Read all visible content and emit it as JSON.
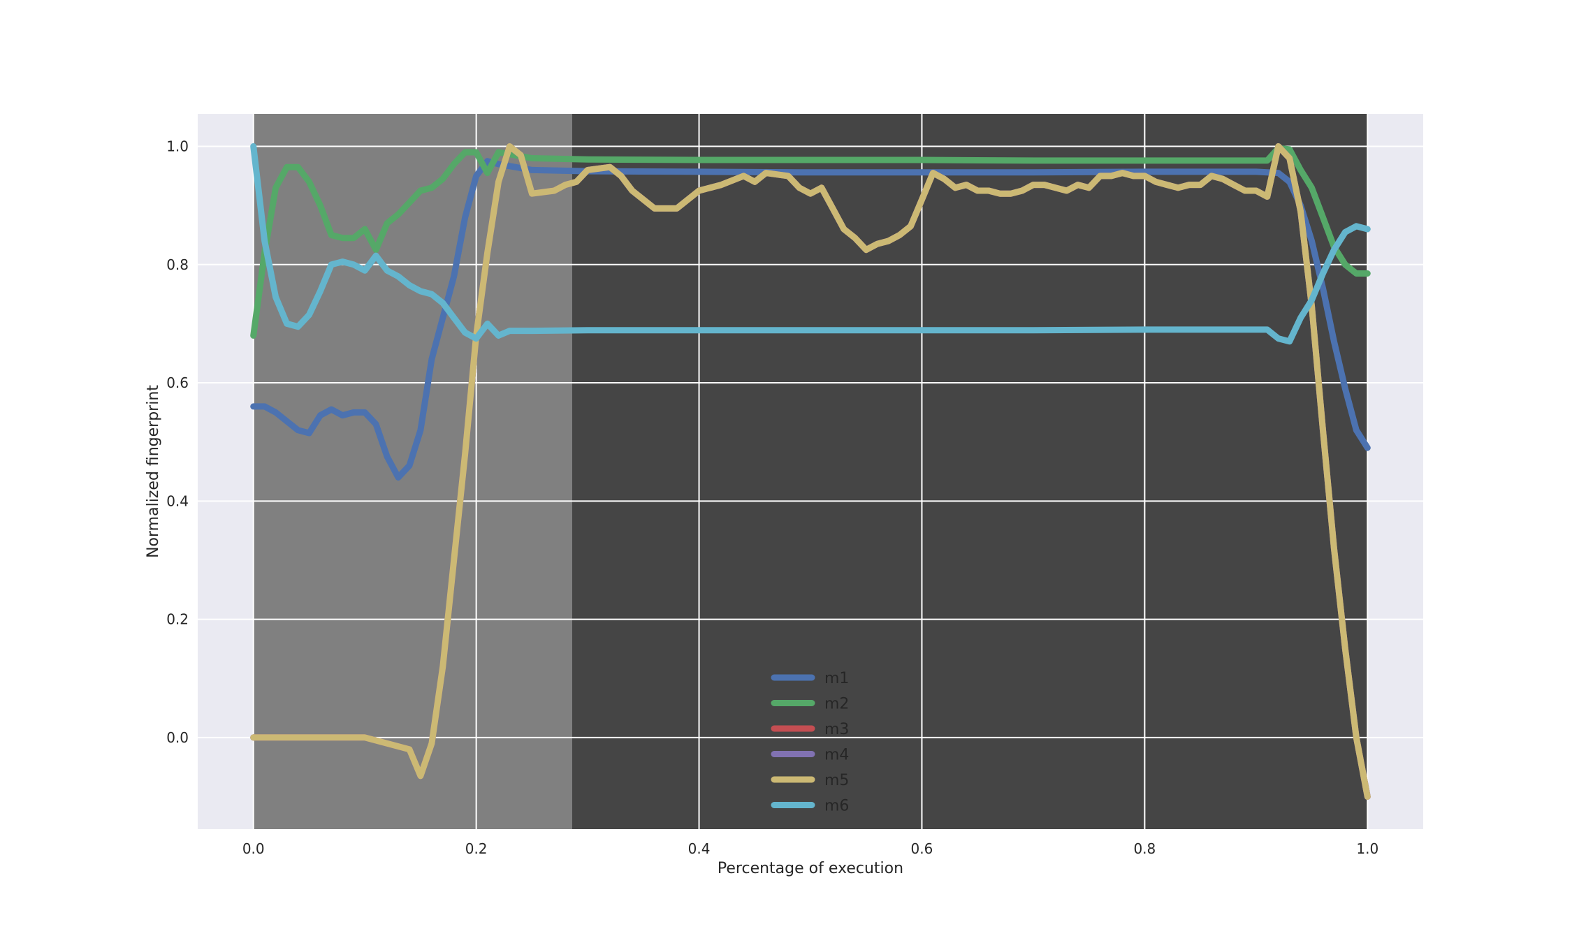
{
  "chart_data": {
    "type": "line",
    "title": "",
    "xlabel": "Percentage of execution",
    "ylabel": "Normalized fingerprint",
    "xlim": [
      -0.05,
      1.05
    ],
    "ylim": [
      -0.155,
      1.055
    ],
    "x_ticks": [
      0.0,
      0.2,
      0.4,
      0.6,
      0.8,
      1.0
    ],
    "x_tick_labels": [
      "0.0",
      "0.2",
      "0.4",
      "0.6",
      "0.8",
      "1.0"
    ],
    "y_ticks": [
      0.0,
      0.2,
      0.4,
      0.6,
      0.8,
      1.0
    ],
    "y_tick_labels": [
      "0.0",
      "0.2",
      "0.4",
      "0.6",
      "0.8",
      "1.0"
    ],
    "grid": true,
    "legend_position": "bottom-center",
    "background_color": "#EAEAF2",
    "shaded_regions": [
      {
        "x": [
          0.0,
          0.286
        ],
        "color": "#808080"
      },
      {
        "x": [
          0.286,
          1.0
        ],
        "color": "#454545"
      }
    ],
    "series": [
      {
        "name": "m1",
        "color": "#4C72B0",
        "x": [
          0,
          0.01,
          0.02,
          0.03,
          0.04,
          0.05,
          0.06,
          0.07,
          0.08,
          0.09,
          0.1,
          0.11,
          0.12,
          0.13,
          0.14,
          0.15,
          0.16,
          0.17,
          0.18,
          0.19,
          0.2,
          0.21,
          0.22,
          0.25,
          0.3,
          0.4,
          0.5,
          0.6,
          0.7,
          0.8,
          0.9,
          0.92,
          0.93,
          0.94,
          0.95,
          0.96,
          0.97,
          0.98,
          0.99,
          1.0
        ],
        "y": [
          0.56,
          0.56,
          0.55,
          0.535,
          0.52,
          0.515,
          0.545,
          0.555,
          0.545,
          0.55,
          0.55,
          0.53,
          0.475,
          0.44,
          0.46,
          0.52,
          0.64,
          0.71,
          0.78,
          0.88,
          0.95,
          0.975,
          0.97,
          0.96,
          0.958,
          0.957,
          0.956,
          0.956,
          0.956,
          0.957,
          0.957,
          0.955,
          0.94,
          0.9,
          0.84,
          0.76,
          0.67,
          0.59,
          0.52,
          0.49
        ]
      },
      {
        "name": "m2",
        "color": "#55A868",
        "x": [
          0,
          0.01,
          0.02,
          0.03,
          0.04,
          0.05,
          0.06,
          0.07,
          0.08,
          0.09,
          0.1,
          0.11,
          0.12,
          0.13,
          0.14,
          0.15,
          0.16,
          0.17,
          0.18,
          0.19,
          0.2,
          0.21,
          0.22,
          0.25,
          0.3,
          0.4,
          0.5,
          0.6,
          0.7,
          0.8,
          0.9,
          0.91,
          0.92,
          0.93,
          0.94,
          0.95,
          0.96,
          0.97,
          0.98,
          0.99,
          1.0
        ],
        "y": [
          0.68,
          0.82,
          0.93,
          0.965,
          0.965,
          0.94,
          0.9,
          0.85,
          0.845,
          0.845,
          0.86,
          0.825,
          0.87,
          0.885,
          0.905,
          0.925,
          0.93,
          0.945,
          0.97,
          0.99,
          0.99,
          0.955,
          0.99,
          0.98,
          0.978,
          0.977,
          0.977,
          0.977,
          0.976,
          0.976,
          0.976,
          0.976,
          0.997,
          0.995,
          0.96,
          0.93,
          0.88,
          0.83,
          0.8,
          0.785,
          0.785
        ]
      },
      {
        "name": "m3",
        "color": "#C44E52",
        "x": [
          0,
          0.1,
          0.14,
          0.15,
          0.16,
          0.17,
          0.18,
          0.19,
          0.2,
          0.21,
          0.22,
          0.23,
          0.24,
          0.25,
          0.27,
          0.28,
          0.29,
          0.3,
          0.32,
          0.33,
          0.34,
          0.36,
          0.38,
          0.4,
          0.42,
          0.44,
          0.45,
          0.46,
          0.48,
          0.49,
          0.5,
          0.51,
          0.52,
          0.53,
          0.54,
          0.55,
          0.56,
          0.57,
          0.58,
          0.59,
          0.6,
          0.61,
          0.62,
          0.63,
          0.64,
          0.65,
          0.66,
          0.67,
          0.68,
          0.69,
          0.7,
          0.71,
          0.72,
          0.73,
          0.74,
          0.75,
          0.76,
          0.77,
          0.78,
          0.79,
          0.8,
          0.81,
          0.82,
          0.83,
          0.84,
          0.85,
          0.86,
          0.87,
          0.88,
          0.89,
          0.9,
          0.91,
          0.92,
          0.93,
          0.94,
          0.95,
          0.96,
          0.97,
          0.98,
          0.99,
          1.0
        ],
        "y": [
          0.0,
          0.0,
          -0.02,
          -0.065,
          -0.01,
          0.12,
          0.3,
          0.48,
          0.68,
          0.82,
          0.94,
          1.0,
          0.985,
          0.92,
          0.925,
          0.935,
          0.94,
          0.96,
          0.965,
          0.95,
          0.925,
          0.895,
          0.895,
          0.925,
          0.935,
          0.95,
          0.94,
          0.955,
          0.95,
          0.93,
          0.92,
          0.93,
          0.895,
          0.86,
          0.845,
          0.825,
          0.835,
          0.84,
          0.85,
          0.865,
          0.91,
          0.955,
          0.945,
          0.93,
          0.935,
          0.925,
          0.925,
          0.92,
          0.92,
          0.925,
          0.935,
          0.935,
          0.93,
          0.925,
          0.935,
          0.93,
          0.95,
          0.95,
          0.955,
          0.95,
          0.95,
          0.94,
          0.935,
          0.93,
          0.935,
          0.935,
          0.95,
          0.945,
          0.935,
          0.925,
          0.925,
          0.915,
          1.0,
          0.98,
          0.89,
          0.73,
          0.52,
          0.32,
          0.15,
          0.0,
          -0.1
        ]
      },
      {
        "name": "m4",
        "color": "#8172B2",
        "x": [
          0,
          0.1,
          0.14,
          0.15,
          0.16,
          0.17,
          0.18,
          0.19,
          0.2,
          0.21,
          0.22,
          0.23,
          0.24,
          0.25,
          0.27,
          0.28,
          0.29,
          0.3,
          0.32,
          0.33,
          0.34,
          0.36,
          0.38,
          0.4,
          0.42,
          0.44,
          0.45,
          0.46,
          0.48,
          0.49,
          0.5,
          0.51,
          0.52,
          0.53,
          0.54,
          0.55,
          0.56,
          0.57,
          0.58,
          0.59,
          0.6,
          0.61,
          0.62,
          0.63,
          0.64,
          0.65,
          0.66,
          0.67,
          0.68,
          0.69,
          0.7,
          0.71,
          0.72,
          0.73,
          0.74,
          0.75,
          0.76,
          0.77,
          0.78,
          0.79,
          0.8,
          0.81,
          0.82,
          0.83,
          0.84,
          0.85,
          0.86,
          0.87,
          0.88,
          0.89,
          0.9,
          0.91,
          0.92,
          0.93,
          0.94,
          0.95,
          0.96,
          0.97,
          0.98,
          0.99,
          1.0
        ],
        "y": [
          0.0,
          0.0,
          -0.02,
          -0.065,
          -0.01,
          0.12,
          0.3,
          0.48,
          0.68,
          0.82,
          0.94,
          1.0,
          0.985,
          0.92,
          0.925,
          0.935,
          0.94,
          0.96,
          0.965,
          0.95,
          0.925,
          0.895,
          0.895,
          0.925,
          0.935,
          0.95,
          0.94,
          0.955,
          0.95,
          0.93,
          0.92,
          0.93,
          0.895,
          0.86,
          0.845,
          0.825,
          0.835,
          0.84,
          0.85,
          0.865,
          0.91,
          0.955,
          0.945,
          0.93,
          0.935,
          0.925,
          0.925,
          0.92,
          0.92,
          0.925,
          0.935,
          0.935,
          0.93,
          0.925,
          0.935,
          0.93,
          0.95,
          0.95,
          0.955,
          0.95,
          0.95,
          0.94,
          0.935,
          0.93,
          0.935,
          0.935,
          0.95,
          0.945,
          0.935,
          0.925,
          0.925,
          0.915,
          1.0,
          0.98,
          0.89,
          0.73,
          0.52,
          0.32,
          0.15,
          0.0,
          -0.1
        ]
      },
      {
        "name": "m5",
        "color": "#CCB974",
        "x": [
          0,
          0.1,
          0.14,
          0.15,
          0.16,
          0.17,
          0.18,
          0.19,
          0.2,
          0.21,
          0.22,
          0.23,
          0.24,
          0.25,
          0.27,
          0.28,
          0.29,
          0.3,
          0.32,
          0.33,
          0.34,
          0.36,
          0.38,
          0.4,
          0.42,
          0.44,
          0.45,
          0.46,
          0.48,
          0.49,
          0.5,
          0.51,
          0.52,
          0.53,
          0.54,
          0.55,
          0.56,
          0.57,
          0.58,
          0.59,
          0.6,
          0.61,
          0.62,
          0.63,
          0.64,
          0.65,
          0.66,
          0.67,
          0.68,
          0.69,
          0.7,
          0.71,
          0.72,
          0.73,
          0.74,
          0.75,
          0.76,
          0.77,
          0.78,
          0.79,
          0.8,
          0.81,
          0.82,
          0.83,
          0.84,
          0.85,
          0.86,
          0.87,
          0.88,
          0.89,
          0.9,
          0.91,
          0.92,
          0.93,
          0.94,
          0.95,
          0.96,
          0.97,
          0.98,
          0.99,
          1.0
        ],
        "y": [
          0.0,
          0.0,
          -0.02,
          -0.065,
          -0.01,
          0.12,
          0.3,
          0.48,
          0.68,
          0.82,
          0.94,
          1.0,
          0.985,
          0.92,
          0.925,
          0.935,
          0.94,
          0.96,
          0.965,
          0.95,
          0.925,
          0.895,
          0.895,
          0.925,
          0.935,
          0.95,
          0.94,
          0.955,
          0.95,
          0.93,
          0.92,
          0.93,
          0.895,
          0.86,
          0.845,
          0.825,
          0.835,
          0.84,
          0.85,
          0.865,
          0.91,
          0.955,
          0.945,
          0.93,
          0.935,
          0.925,
          0.925,
          0.92,
          0.92,
          0.925,
          0.935,
          0.935,
          0.93,
          0.925,
          0.935,
          0.93,
          0.95,
          0.95,
          0.955,
          0.95,
          0.95,
          0.94,
          0.935,
          0.93,
          0.935,
          0.935,
          0.95,
          0.945,
          0.935,
          0.925,
          0.925,
          0.915,
          1.0,
          0.98,
          0.89,
          0.73,
          0.52,
          0.32,
          0.15,
          0.0,
          -0.1
        ]
      },
      {
        "name": "m6",
        "color": "#64B5CD",
        "x": [
          0,
          0.01,
          0.02,
          0.03,
          0.04,
          0.05,
          0.06,
          0.07,
          0.08,
          0.09,
          0.1,
          0.11,
          0.12,
          0.13,
          0.14,
          0.15,
          0.16,
          0.17,
          0.18,
          0.19,
          0.2,
          0.21,
          0.22,
          0.23,
          0.25,
          0.3,
          0.4,
          0.5,
          0.6,
          0.7,
          0.8,
          0.9,
          0.91,
          0.92,
          0.93,
          0.94,
          0.95,
          0.96,
          0.97,
          0.98,
          0.99,
          1.0
        ],
        "y": [
          1.0,
          0.84,
          0.745,
          0.7,
          0.695,
          0.715,
          0.755,
          0.8,
          0.805,
          0.8,
          0.79,
          0.815,
          0.79,
          0.78,
          0.765,
          0.755,
          0.75,
          0.735,
          0.71,
          0.685,
          0.675,
          0.7,
          0.68,
          0.688,
          0.688,
          0.689,
          0.689,
          0.689,
          0.689,
          0.689,
          0.69,
          0.69,
          0.69,
          0.675,
          0.67,
          0.71,
          0.74,
          0.785,
          0.825,
          0.855,
          0.865,
          0.86
        ]
      }
    ]
  }
}
